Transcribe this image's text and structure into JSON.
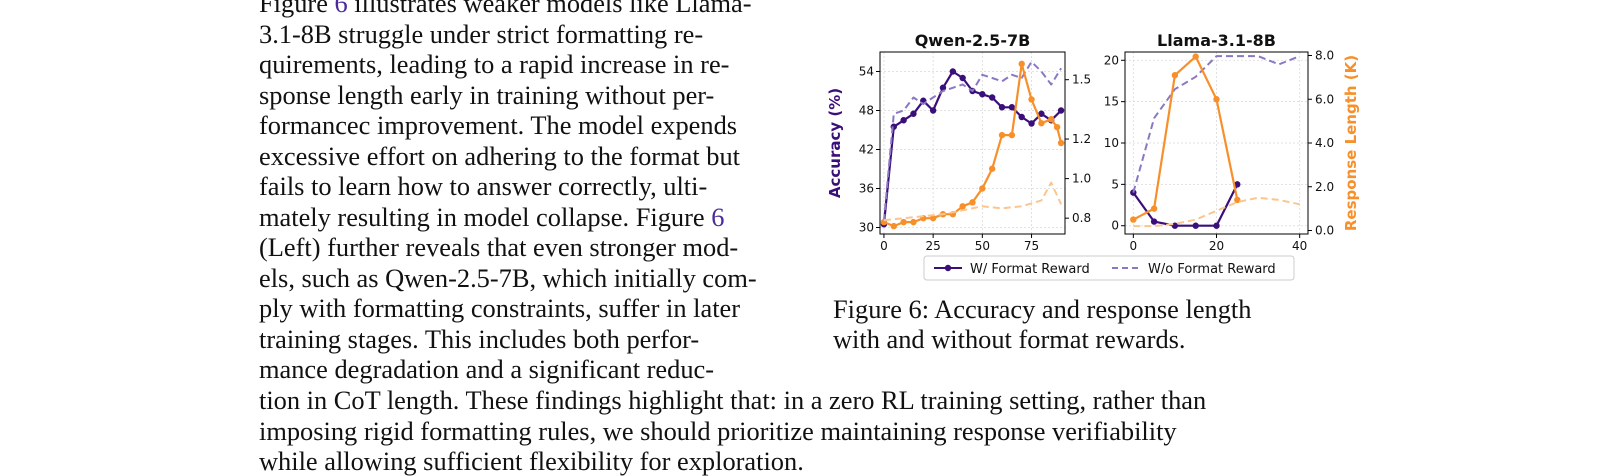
{
  "left_column": [
    {
      "pre": "Figure ",
      "ref": "6",
      "post": " illustrates weaker models like Llama-"
    },
    {
      "pre": "3.1-8B struggle under strict formatting re-"
    },
    {
      "pre": "quirements, leading to a rapid increase in re-"
    },
    {
      "pre": "sponse length early in training without per-"
    },
    {
      "pre": "formancec improvement. The model expends"
    },
    {
      "pre": "excessive effort on adhering to the format but"
    },
    {
      "pre": "fails to learn how to answer correctly, ulti-"
    },
    {
      "pre": "mately resulting in model collapse. Figure ",
      "ref": "6"
    },
    {
      "pre": "(Left) further reveals that even stronger mod-"
    },
    {
      "pre": "els, such as Qwen-2.5-7B, which initially com-"
    },
    {
      "pre": "ply with formatting constraints, suffer in later"
    },
    {
      "pre": "training stages.  This includes both perfor-"
    },
    {
      "pre": "mance degradation and a significant reduc-"
    }
  ],
  "full_width": [
    "tion in CoT length. These findings highlight that: in a zero RL training setting, rather than",
    "imposing rigid formatting rules, we should prioritize maintaining response verifiability",
    "while allowing sufficient flexibility for exploration."
  ],
  "caption": {
    "line1": "Figure 6:  Accuracy and response length",
    "line2": "with and without format rewards."
  },
  "colors": {
    "accuracy": "#3b0f7a",
    "accuracy_light": "#8a78c4",
    "length": "#f7902a",
    "length_light": "#fbc58e",
    "ref_link": "#4b2a9b"
  },
  "chart_data": [
    {
      "type": "line",
      "title": "Qwen-2.5-7B",
      "ylabel": "Accuracy (%)",
      "y2label": "",
      "xlim": [
        -2,
        92
      ],
      "ylim": [
        29,
        57
      ],
      "y2lim": [
        0.72,
        1.64
      ],
      "xticks": [
        0,
        25,
        50,
        75
      ],
      "yticks": [
        30,
        36,
        42,
        48,
        54
      ],
      "y2ticks": [
        "0.8",
        "1.0",
        "1.2",
        "1.5"
      ],
      "y2tick_values": [
        0.8,
        1.0,
        1.2,
        1.5
      ],
      "grid": true,
      "series": [
        {
          "name": "accuracy_w_format",
          "axis": "left",
          "style": "solid-marker",
          "x": [
            0,
            5,
            10,
            15,
            20,
            25,
            30,
            35,
            40,
            45,
            50,
            55,
            60,
            65,
            70,
            75,
            80,
            85,
            90
          ],
          "values": [
            30.5,
            45.5,
            46.5,
            47.5,
            49.5,
            48,
            51.5,
            54,
            53,
            51,
            50.5,
            50,
            48.5,
            48.5,
            47,
            46,
            47.5,
            46.5,
            48
          ]
        },
        {
          "name": "accuracy_wo_format",
          "axis": "left",
          "style": "dashed",
          "x": [
            0,
            5,
            10,
            15,
            20,
            25,
            30,
            35,
            40,
            45,
            50,
            55,
            60,
            65,
            70,
            75,
            80,
            85,
            90
          ],
          "values": [
            31,
            47.5,
            48,
            50,
            49,
            50,
            51,
            51.5,
            52,
            51,
            53.5,
            53,
            52.5,
            53.5,
            53,
            55.5,
            54,
            52,
            54.5
          ]
        },
        {
          "name": "length_w_format",
          "axis": "right",
          "style": "solid-marker",
          "x": [
            0,
            5,
            10,
            15,
            20,
            25,
            30,
            35,
            40,
            45,
            50,
            55,
            60,
            65,
            70,
            75,
            80,
            85,
            88,
            90
          ],
          "values": [
            0.78,
            0.76,
            0.78,
            0.78,
            0.8,
            0.8,
            0.82,
            0.82,
            0.86,
            0.88,
            0.95,
            1.05,
            1.22,
            1.22,
            1.58,
            1.4,
            1.28,
            1.3,
            1.26,
            1.18
          ]
        },
        {
          "name": "length_wo_format",
          "axis": "right",
          "style": "dashed",
          "x": [
            0,
            10,
            20,
            30,
            40,
            50,
            60,
            70,
            80,
            85,
            90
          ],
          "values": [
            0.79,
            0.8,
            0.81,
            0.82,
            0.84,
            0.86,
            0.85,
            0.86,
            0.89,
            0.98,
            0.87
          ]
        }
      ]
    },
    {
      "type": "line",
      "title": "Llama-3.1-8B",
      "ylabel": "",
      "y2label": "Response Length (K)",
      "xlim": [
        -2,
        42
      ],
      "ylim": [
        -1,
        21
      ],
      "y2lim": [
        -0.16,
        8.16
      ],
      "xticks": [
        0,
        20,
        40
      ],
      "yticks": [
        0,
        5,
        10,
        15,
        20
      ],
      "y2ticks": [
        "0.0",
        "2.0",
        "4.0",
        "6.0",
        "8.0"
      ],
      "y2tick_values": [
        0,
        2,
        4,
        6,
        8
      ],
      "grid": true,
      "series": [
        {
          "name": "accuracy_w_format",
          "axis": "left",
          "style": "solid-marker",
          "x": [
            0,
            5,
            10,
            15,
            20,
            25
          ],
          "values": [
            4,
            0.5,
            0,
            0,
            0,
            5
          ]
        },
        {
          "name": "accuracy_wo_format",
          "axis": "left",
          "style": "dashed",
          "x": [
            0,
            5,
            10,
            15,
            20,
            25,
            30,
            35,
            40
          ],
          "values": [
            4,
            13,
            16.5,
            18,
            20.5,
            20.5,
            20.5,
            19.5,
            20.5
          ]
        },
        {
          "name": "length_w_format",
          "axis": "right",
          "style": "solid-marker",
          "x": [
            0,
            5,
            10,
            15,
            20,
            25
          ],
          "values": [
            0.5,
            1.0,
            7.1,
            7.95,
            6.0,
            1.4
          ]
        },
        {
          "name": "length_wo_format",
          "axis": "right",
          "style": "dashed",
          "x": [
            0,
            5,
            10,
            15,
            20,
            25,
            30,
            35,
            40
          ],
          "values": [
            0.2,
            0.2,
            0.3,
            0.5,
            0.9,
            1.3,
            1.5,
            1.4,
            1.2
          ]
        }
      ]
    }
  ],
  "legend": {
    "solid": "W/ Format Reward",
    "dashed": "W/o Format Reward",
    "placement": "bottom"
  }
}
